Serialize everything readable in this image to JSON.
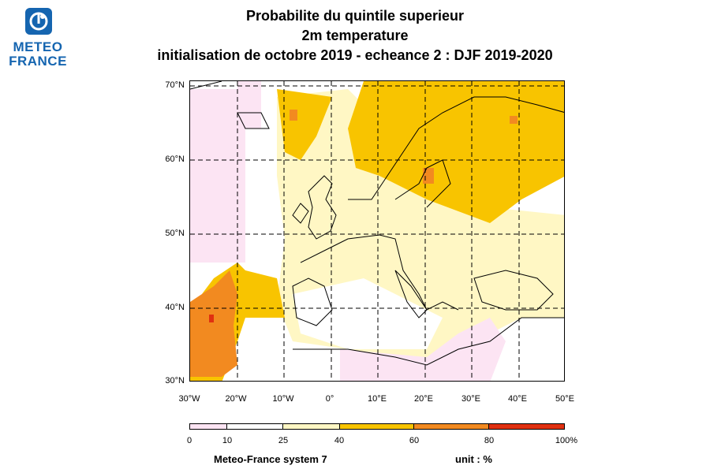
{
  "logo": {
    "line1": "METEO",
    "line2": "FRANCE",
    "icon": "meteo-france-logo-icon",
    "color": "#1565b0"
  },
  "title": {
    "line1": "Probabilite du quintile superieur",
    "line2": "2m temperature",
    "line3": "initialisation de octobre 2019  -  echeance 2 : DJF 2019-2020"
  },
  "map": {
    "lat_labels": [
      "70°N",
      "60°N",
      "50°N",
      "40°N",
      "30°N"
    ],
    "lon_labels": [
      "30°W",
      "20°W",
      "10°W",
      "0°",
      "10°E",
      "20°E",
      "30°E",
      "40°E",
      "50°E"
    ]
  },
  "legend": {
    "labels": [
      "0",
      "10",
      "25",
      "40",
      "60",
      "80",
      "100%"
    ],
    "bins": [
      {
        "from": 0,
        "to": 10,
        "color": "#fce4f3"
      },
      {
        "from": 10,
        "to": 25,
        "color": "#ffffff"
      },
      {
        "from": 25,
        "to": 40,
        "color": "#fff7c4"
      },
      {
        "from": 40,
        "to": 60,
        "color": "#f8c400"
      },
      {
        "from": 60,
        "to": 80,
        "color": "#f28a20"
      },
      {
        "from": 80,
        "to": 100,
        "color": "#e03010"
      }
    ]
  },
  "footer": {
    "model": "Meteo-France system 7",
    "unit": "unit : %"
  }
}
